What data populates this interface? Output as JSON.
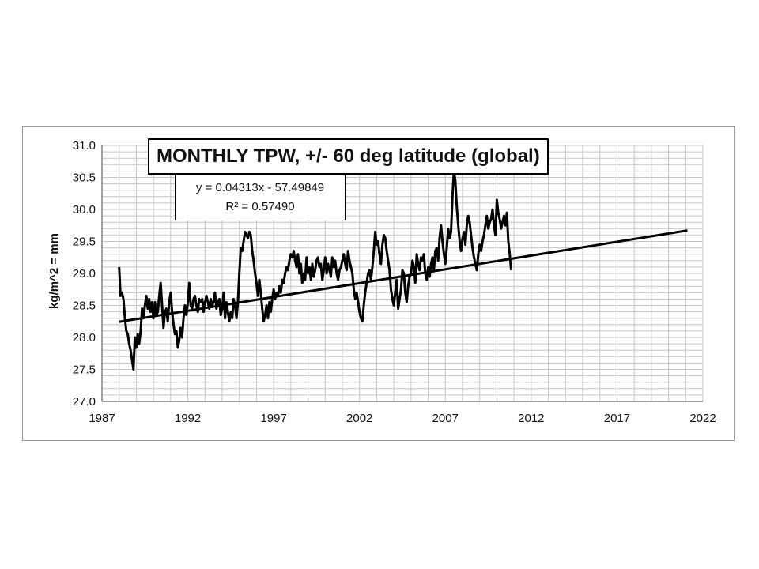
{
  "chart_data": {
    "type": "line",
    "title": "MONTHLY TPW, +/- 60 deg latitude (global)",
    "xlabel": "",
    "ylabel": "kg/m^2  = mm",
    "xlim": [
      1987,
      2022
    ],
    "ylim": [
      27.0,
      31.0
    ],
    "x_ticks": [
      "1987",
      "1992",
      "1997",
      "2002",
      "2007",
      "2012",
      "2017",
      "2022"
    ],
    "y_ticks": [
      "27.0",
      "27.5",
      "28.0",
      "28.5",
      "29.0",
      "29.5",
      "30.0",
      "30.5",
      "31.0"
    ],
    "grid": true,
    "series": [
      {
        "color": "#000000",
        "x_start": 1988.0,
        "x_step": 0.08333,
        "values": [
          29.1,
          28.65,
          28.7,
          28.6,
          28.3,
          28.1,
          28.05,
          27.9,
          27.8,
          27.65,
          27.5,
          28.0,
          27.85,
          28.05,
          27.9,
          28.1,
          28.45,
          28.3,
          28.5,
          28.65,
          28.45,
          28.6,
          28.4,
          28.55,
          28.3,
          28.55,
          28.35,
          28.4,
          28.65,
          28.85,
          28.5,
          28.15,
          28.4,
          28.45,
          28.25,
          28.55,
          28.7,
          28.4,
          28.2,
          28.05,
          28.1,
          27.85,
          27.95,
          28.15,
          28.0,
          28.3,
          28.5,
          28.35,
          28.55,
          28.85,
          28.5,
          28.45,
          28.6,
          28.65,
          28.5,
          28.4,
          28.6,
          28.55,
          28.6,
          28.4,
          28.55,
          28.65,
          28.55,
          28.45,
          28.6,
          28.5,
          28.55,
          28.7,
          28.45,
          28.55,
          28.6,
          28.35,
          28.45,
          28.7,
          28.3,
          28.55,
          28.4,
          28.25,
          28.4,
          28.3,
          28.6,
          28.5,
          28.3,
          28.55,
          29.0,
          29.4,
          29.35,
          29.5,
          29.65,
          29.6,
          29.55,
          29.65,
          29.6,
          29.35,
          29.2,
          29.0,
          28.85,
          28.65,
          28.9,
          28.7,
          28.45,
          28.25,
          28.35,
          28.5,
          28.3,
          28.55,
          28.4,
          28.6,
          28.75,
          28.6,
          28.7,
          28.65,
          28.8,
          28.7,
          28.9,
          28.85,
          29.0,
          29.1,
          29.05,
          29.2,
          29.3,
          29.25,
          29.35,
          29.2,
          29.1,
          29.3,
          29.0,
          29.15,
          28.85,
          29.0,
          28.9,
          29.25,
          29.0,
          29.1,
          28.9,
          29.15,
          28.95,
          29.05,
          29.2,
          29.25,
          29.1,
          29.15,
          28.9,
          29.05,
          29.25,
          29.0,
          29.15,
          29.05,
          28.95,
          29.25,
          29.1,
          29.2,
          29.0,
          28.9,
          29.05,
          29.1,
          29.2,
          29.3,
          29.15,
          29.05,
          29.35,
          29.2,
          29.1,
          29.0,
          28.75,
          28.6,
          28.7,
          28.55,
          28.4,
          28.3,
          28.25,
          28.5,
          28.7,
          28.85,
          29.0,
          29.05,
          28.9,
          29.1,
          29.35,
          29.65,
          29.45,
          29.5,
          29.3,
          29.15,
          29.45,
          29.6,
          29.55,
          29.35,
          29.2,
          29.05,
          28.75,
          28.6,
          28.5,
          28.7,
          28.9,
          28.45,
          28.6,
          28.75,
          29.05,
          29.0,
          28.7,
          28.55,
          28.8,
          28.95,
          29.0,
          29.2,
          29.1,
          28.85,
          29.3,
          29.15,
          29.05,
          29.25,
          29.2,
          29.3,
          29.0,
          28.9,
          29.1,
          28.95,
          29.15,
          29.25,
          29.05,
          29.35,
          29.4,
          29.2,
          29.55,
          29.75,
          29.5,
          29.3,
          29.15,
          29.4,
          29.7,
          29.55,
          29.65,
          30.2,
          30.6,
          30.45,
          30.05,
          29.75,
          29.5,
          29.35,
          29.55,
          29.65,
          29.45,
          29.75,
          29.9,
          29.8,
          29.6,
          29.4,
          29.25,
          29.15,
          29.05,
          29.3,
          29.45,
          29.35,
          29.5,
          29.6,
          29.75,
          29.9,
          29.7,
          29.8,
          29.85,
          30.0,
          29.75,
          29.6,
          30.15,
          29.95,
          29.85,
          29.7,
          29.8,
          29.9,
          29.75,
          29.95,
          29.5,
          29.3,
          29.05
        ]
      }
    ],
    "trendline": {
      "equation": "y = 0.04313x - 57.49849",
      "r_squared": "R² = 0.57490",
      "slope": 0.04313,
      "intercept": -57.49849,
      "x_range": [
        1988.0,
        2021.1
      ]
    },
    "legend": "none"
  }
}
